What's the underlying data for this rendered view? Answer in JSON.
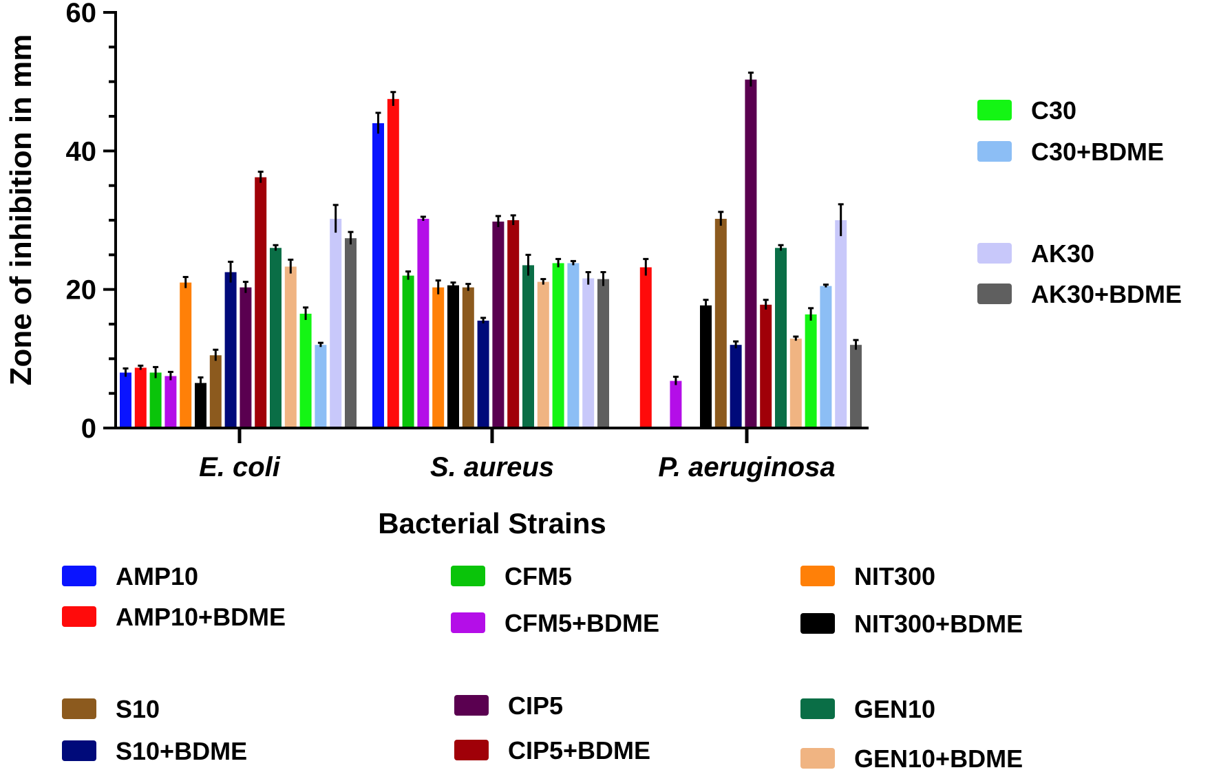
{
  "chart_data": {
    "type": "bar",
    "ylabel": "Zone of inhibition in mm",
    "xlabel": "Bacterial Strains",
    "ylim": [
      0,
      60
    ],
    "yticks": [
      0,
      20,
      40,
      60
    ],
    "categories": [
      "E. coli",
      "S. aureus",
      "P. aeruginosa"
    ],
    "series": [
      {
        "name": "AMP10",
        "color": "#0a14ff",
        "values": [
          8,
          44,
          0
        ],
        "errors": [
          0.6,
          1.5,
          0
        ]
      },
      {
        "name": "AMP10+BDME",
        "color": "#ff0b0b",
        "values": [
          8.7,
          47.5,
          23.2
        ],
        "errors": [
          0.3,
          1,
          1.2
        ]
      },
      {
        "name": "CFM5",
        "color": "#0ac40a",
        "values": [
          8,
          22,
          0
        ],
        "errors": [
          0.8,
          0.6,
          0
        ]
      },
      {
        "name": "CFM5+BDME",
        "color": "#b40ee8",
        "values": [
          7.5,
          30.2,
          6.8
        ],
        "errors": [
          0.6,
          0.3,
          0.6
        ]
      },
      {
        "name": "NIT300",
        "color": "#ff8008",
        "values": [
          21,
          20.3,
          0
        ],
        "errors": [
          0.8,
          1,
          0
        ]
      },
      {
        "name": "NIT300+BDME",
        "color": "#000000",
        "values": [
          6.5,
          20.6,
          17.7
        ],
        "errors": [
          0.8,
          0.4,
          0.8
        ]
      },
      {
        "name": "S10",
        "color": "#8c5a1e",
        "values": [
          10.5,
          20.3,
          30.2
        ],
        "errors": [
          0.8,
          0.5,
          1
        ]
      },
      {
        "name": "S10+BDME",
        "color": "#000a7a",
        "values": [
          22.5,
          15.5,
          12
        ],
        "errors": [
          1.5,
          0.4,
          0.5
        ]
      },
      {
        "name": "CIP5",
        "color": "#5a0050",
        "values": [
          20.3,
          29.8,
          50.3
        ],
        "errors": [
          0.8,
          0.8,
          1
        ]
      },
      {
        "name": "CIP5+BDME",
        "color": "#a00008",
        "values": [
          36.2,
          30,
          17.8
        ],
        "errors": [
          0.8,
          0.7,
          0.7
        ]
      },
      {
        "name": "GEN10",
        "color": "#0a6e46",
        "values": [
          26,
          23.5,
          26
        ],
        "errors": [
          0.4,
          1.5,
          0.4
        ]
      },
      {
        "name": "GEN10+BDME",
        "color": "#f0b482",
        "values": [
          23.3,
          21.1,
          12.9
        ],
        "errors": [
          1,
          0.4,
          0.3
        ]
      },
      {
        "name": "C30",
        "color": "#14f514",
        "values": [
          16.5,
          23.8,
          16.4
        ],
        "errors": [
          0.9,
          0.6,
          0.9
        ]
      },
      {
        "name": "C30+BDME",
        "color": "#8cbef5",
        "values": [
          12,
          23.8,
          20.5
        ],
        "errors": [
          0.3,
          0.3,
          0.2
        ]
      },
      {
        "name": "AK30",
        "color": "#c8c8fa",
        "values": [
          30.2,
          21.6,
          30
        ],
        "errors": [
          2,
          0.9,
          2.3
        ]
      },
      {
        "name": "AK30+BDME",
        "color": "#5f5f5f",
        "values": [
          27.4,
          21.5,
          12
        ],
        "errors": [
          0.9,
          1,
          0.7
        ]
      }
    ]
  }
}
